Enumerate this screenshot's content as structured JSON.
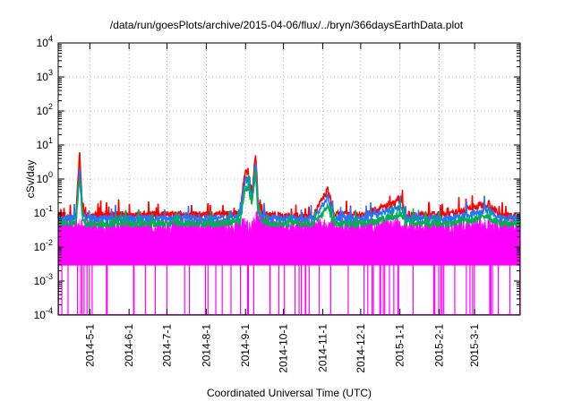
{
  "chart_data": {
    "type": "line",
    "title": "/data/run/goesPlots/archive/2015-04-06/flux/../bryn/366daysEarthData.plot",
    "xlabel": "Coordinated Universal Time (UTC)",
    "ylabel": "cSv/day",
    "yscale": "log",
    "ylim": [
      0.0001,
      10000
    ],
    "xlim": [
      "2014-04-06",
      "2015-04-06"
    ],
    "grid": true,
    "legend": "none",
    "x_ticks": [
      "2014-5-1",
      "2014-6-1",
      "2014-7-1",
      "2014-8-1",
      "2014-9-1",
      "2014-10-1",
      "2014-11-1",
      "2014-12-1",
      "2015-1-1",
      "2015-2-1",
      "2015-3-1"
    ],
    "y_ticks": [
      {
        "value": 0.0001,
        "base": "10",
        "exp": "-4"
      },
      {
        "value": 0.001,
        "base": "10",
        "exp": "-3"
      },
      {
        "value": 0.01,
        "base": "10",
        "exp": "-2"
      },
      {
        "value": 0.1,
        "base": "10",
        "exp": "-1"
      },
      {
        "value": 1,
        "base": "10",
        "exp": "0"
      },
      {
        "value": 10,
        "base": "10",
        "exp": "1"
      },
      {
        "value": 100,
        "base": "10",
        "exp": "2"
      },
      {
        "value": 1000,
        "base": "10",
        "exp": "3"
      },
      {
        "value": 10000,
        "base": "10",
        "exp": "4"
      }
    ],
    "series": [
      {
        "color": "#ff0000",
        "x": [
          "2014-04-06",
          "2014-04-20",
          "2014-04-23",
          "2014-04-25",
          "2014-04-28",
          "2014-05-15",
          "2014-06-15",
          "2014-07-15",
          "2014-08-10",
          "2014-08-28",
          "2014-08-30",
          "2014-09-01",
          "2014-09-03",
          "2014-09-06",
          "2014-09-09",
          "2014-09-11",
          "2014-09-13",
          "2014-09-17",
          "2014-10-05",
          "2014-10-25",
          "2014-11-05",
          "2014-11-10",
          "2014-12-05",
          "2015-01-02",
          "2015-01-06",
          "2015-02-10",
          "2015-03-12",
          "2015-03-20",
          "2015-04-06"
        ],
        "y": [
          0.08,
          0.08,
          6,
          0.15,
          0.08,
          0.09,
          0.09,
          0.09,
          0.09,
          0.1,
          0.6,
          1.5,
          1.8,
          0.4,
          5.5,
          0.2,
          0.12,
          0.09,
          0.08,
          0.09,
          0.5,
          0.09,
          0.09,
          0.25,
          0.09,
          0.09,
          0.2,
          0.09,
          0.08
        ]
      },
      {
        "color": "#1f77ff",
        "x": [
          "2014-04-06",
          "2014-04-20",
          "2014-04-23",
          "2014-04-25",
          "2014-04-28",
          "2014-05-15",
          "2014-06-15",
          "2014-07-15",
          "2014-08-10",
          "2014-08-28",
          "2014-08-30",
          "2014-09-01",
          "2014-09-03",
          "2014-09-06",
          "2014-09-09",
          "2014-09-11",
          "2014-09-13",
          "2014-09-17",
          "2014-10-05",
          "2014-10-25",
          "2014-11-05",
          "2014-11-10",
          "2014-12-05",
          "2015-01-02",
          "2015-01-06",
          "2015-02-10",
          "2015-03-12",
          "2015-03-20",
          "2015-04-06"
        ],
        "y": [
          0.07,
          0.07,
          2.5,
          0.1,
          0.07,
          0.07,
          0.07,
          0.07,
          0.07,
          0.08,
          0.4,
          1,
          1.1,
          0.3,
          3.5,
          0.15,
          0.1,
          0.07,
          0.07,
          0.07,
          0.3,
          0.07,
          0.07,
          0.15,
          0.07,
          0.07,
          0.12,
          0.07,
          0.07
        ]
      },
      {
        "color": "#00b050",
        "x": [
          "2014-04-06",
          "2014-04-20",
          "2014-04-23",
          "2014-04-25",
          "2014-04-28",
          "2014-05-15",
          "2014-06-15",
          "2014-07-15",
          "2014-08-10",
          "2014-08-28",
          "2014-08-30",
          "2014-09-01",
          "2014-09-03",
          "2014-09-06",
          "2014-09-09",
          "2014-09-11",
          "2014-09-13",
          "2014-09-17",
          "2014-10-05",
          "2014-10-25",
          "2014-11-05",
          "2014-11-10",
          "2014-12-05",
          "2015-01-02",
          "2015-01-06",
          "2015-02-10",
          "2015-03-12",
          "2015-03-20",
          "2015-04-06"
        ],
        "y": [
          0.05,
          0.05,
          1.2,
          0.08,
          0.05,
          0.05,
          0.05,
          0.05,
          0.05,
          0.06,
          0.2,
          0.5,
          0.6,
          0.2,
          1.5,
          0.1,
          0.07,
          0.05,
          0.05,
          0.05,
          0.15,
          0.05,
          0.05,
          0.09,
          0.05,
          0.05,
          0.08,
          0.05,
          0.05
        ]
      },
      {
        "color": "#ff00ff",
        "x": [
          "2014-04-06",
          "2014-05-01",
          "2014-06-01",
          "2014-07-01",
          "2014-08-01",
          "2014-08-28",
          "2014-09-01",
          "2014-09-05",
          "2014-09-10",
          "2014-09-14",
          "2014-10-01",
          "2014-11-01",
          "2014-12-01",
          "2015-01-01",
          "2015-02-01",
          "2015-03-01",
          "2015-04-06"
        ],
        "y": [
          0.03,
          0.03,
          0.03,
          0.03,
          0.03,
          0.03,
          0.05,
          0.02,
          0.06,
          0.04,
          0.03,
          0.03,
          0.03,
          0.03,
          0.03,
          0.03,
          0.03
        ]
      }
    ]
  }
}
